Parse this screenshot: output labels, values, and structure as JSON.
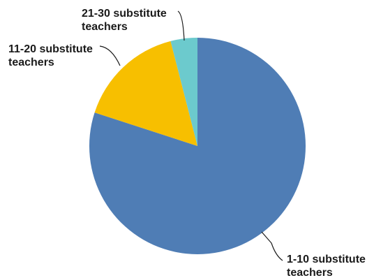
{
  "chart_data": {
    "type": "pie",
    "title": "",
    "slices": [
      {
        "label_lines": [
          "1-10 substitute",
          "teachers"
        ],
        "value": 80,
        "color": "#4f7db5"
      },
      {
        "label_lines": [
          "11-20 substitute",
          "teachers"
        ],
        "value": 16,
        "color": "#f7bf00"
      },
      {
        "label_lines": [
          "21-30 substitute",
          "teachers"
        ],
        "value": 4,
        "color": "#6ccacd"
      }
    ],
    "legend": "none",
    "start": "top, clockwise"
  }
}
